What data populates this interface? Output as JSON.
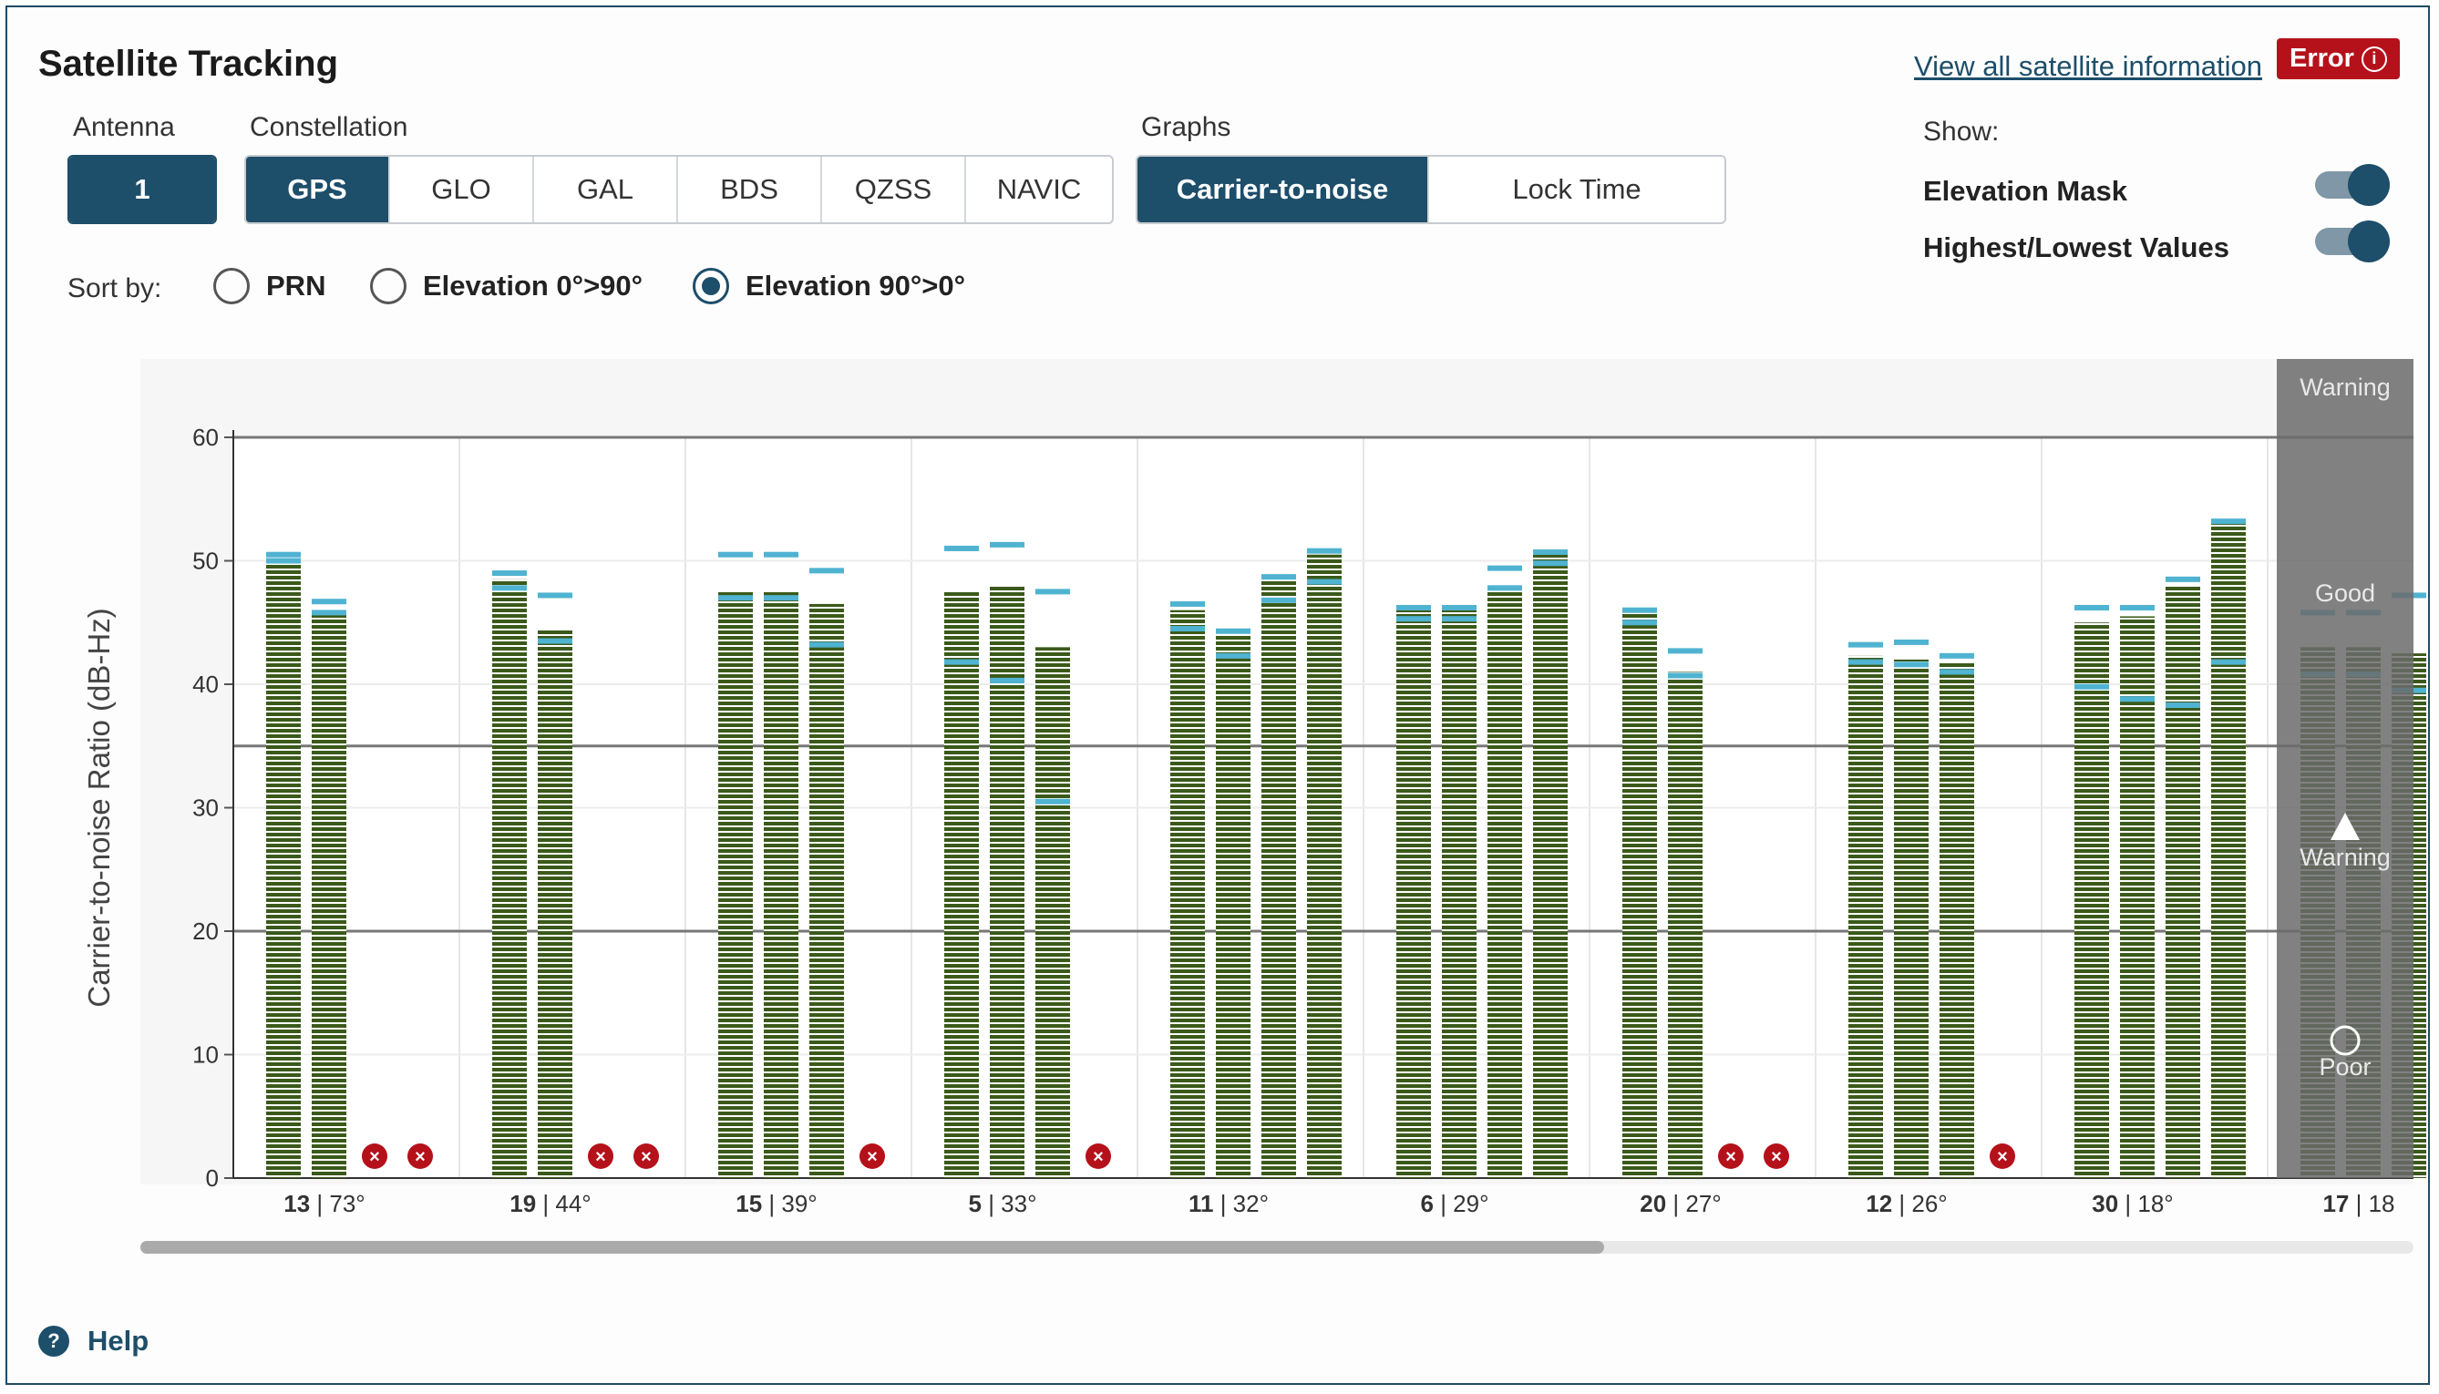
{
  "header": {
    "title": "Satellite Tracking",
    "view_link": "View all satellite information",
    "error_label": "Error",
    "error_icon": "info-icon"
  },
  "antenna": {
    "label": "Antenna",
    "value": "1"
  },
  "constellation": {
    "label": "Constellation",
    "options": [
      "GPS",
      "GLO",
      "GAL",
      "BDS",
      "QZSS",
      "NAVIC"
    ],
    "selected": "GPS"
  },
  "graphs": {
    "label": "Graphs",
    "options": [
      "Carrier-to-noise",
      "Lock Time"
    ],
    "selected": "Carrier-to-noise"
  },
  "show": {
    "label": "Show:",
    "toggles": [
      {
        "label": "Elevation Mask",
        "on": true
      },
      {
        "label": "Highest/Lowest Values",
        "on": true
      }
    ]
  },
  "sort": {
    "label": "Sort by:",
    "options": [
      "PRN",
      "Elevation 0°>90°",
      "Elevation 90°>0°"
    ],
    "selected": "Elevation 90°>0°"
  },
  "help": {
    "label": "Help"
  },
  "colors": {
    "primary": "#1d4e6a",
    "bar": "#3b5a1a",
    "marker": "#4fb3d1",
    "error": "#b5111b",
    "mask": "#6b6b6b"
  },
  "chart_data": {
    "type": "bar",
    "ylabel": "Carrier-to-noise Ratio (dB-Hz)",
    "ylim": [
      0,
      60
    ],
    "yticks": [
      0,
      10,
      20,
      30,
      40,
      50,
      60
    ],
    "threshold_lines": [
      20,
      35,
      60
    ],
    "mask_zones": [
      "Warning",
      "Good",
      "Warning",
      "Poor"
    ],
    "groups": [
      {
        "prn": "13",
        "elev": "73°",
        "bars": [
          {
            "v": 50,
            "hi": 50.5,
            "lo": 50
          },
          {
            "v": 46,
            "hi": 46.7,
            "lo": 45.8
          },
          null,
          null
        ]
      },
      {
        "prn": "19",
        "elev": "44°",
        "bars": [
          {
            "v": 48.5,
            "hi": 49,
            "lo": 47.8
          },
          {
            "v": 44.5,
            "hi": 47.2,
            "lo": 43.5
          },
          null,
          null
        ]
      },
      {
        "prn": "15",
        "elev": "39°",
        "bars": [
          {
            "v": 47.5,
            "hi": 50.5,
            "lo": 47
          },
          {
            "v": 47.5,
            "hi": 50.5,
            "lo": 47
          },
          {
            "v": 46.5,
            "hi": 49.2,
            "lo": 43.2
          },
          null
        ]
      },
      {
        "prn": "5",
        "elev": "33°",
        "bars": [
          {
            "v": 47.5,
            "hi": 51,
            "lo": 41.8
          },
          {
            "v": 48,
            "hi": 51.3,
            "lo": 40.3
          },
          {
            "v": 43,
            "hi": 47.5,
            "lo": 30.5
          },
          null
        ]
      },
      {
        "prn": "11",
        "elev": "32°",
        "bars": [
          {
            "v": 46,
            "hi": 46.5,
            "lo": 44.5
          },
          {
            "v": 44,
            "hi": 44.3,
            "lo": 42.3
          },
          {
            "v": 48.5,
            "hi": 48.7,
            "lo": 46.8
          },
          {
            "v": 50.5,
            "hi": 50.8,
            "lo": 48.3
          }
        ]
      },
      {
        "prn": "6",
        "elev": "29°",
        "bars": [
          {
            "v": 46,
            "hi": 46.2,
            "lo": 45.3
          },
          {
            "v": 46,
            "hi": 46.2,
            "lo": 45.3
          },
          {
            "v": 48,
            "hi": 49.4,
            "lo": 47.8
          },
          {
            "v": 50.5,
            "hi": 50.7,
            "lo": 49.8
          }
        ]
      },
      {
        "prn": "20",
        "elev": "27°",
        "bars": [
          {
            "v": 45.8,
            "hi": 46,
            "lo": 45
          },
          {
            "v": 41,
            "hi": 42.7,
            "lo": 40.7
          },
          null,
          null
        ]
      },
      {
        "prn": "12",
        "elev": "26°",
        "bars": [
          {
            "v": 42.3,
            "hi": 43.2,
            "lo": 41.8
          },
          {
            "v": 42,
            "hi": 43.4,
            "lo": 41.6
          },
          {
            "v": 41.8,
            "hi": 42.3,
            "lo": 41
          },
          null
        ]
      },
      {
        "prn": "30",
        "elev": "18°",
        "bars": [
          {
            "v": 45,
            "hi": 46.2,
            "lo": 39.8
          },
          {
            "v": 45.5,
            "hi": 46.2,
            "lo": 38.8
          },
          {
            "v": 48,
            "hi": 48.5,
            "lo": 38.3
          },
          {
            "v": 53,
            "hi": 53.2,
            "lo": 41.8
          }
        ]
      },
      {
        "prn": "17",
        "elev": "18",
        "bars": [
          {
            "v": 43,
            "hi": 45.8,
            "lo": 40.8
          },
          {
            "v": 43,
            "hi": 45.8,
            "lo": 40.8
          },
          {
            "v": 42.5,
            "hi": 47.2,
            "lo": 39.5
          },
          null
        ]
      }
    ]
  }
}
